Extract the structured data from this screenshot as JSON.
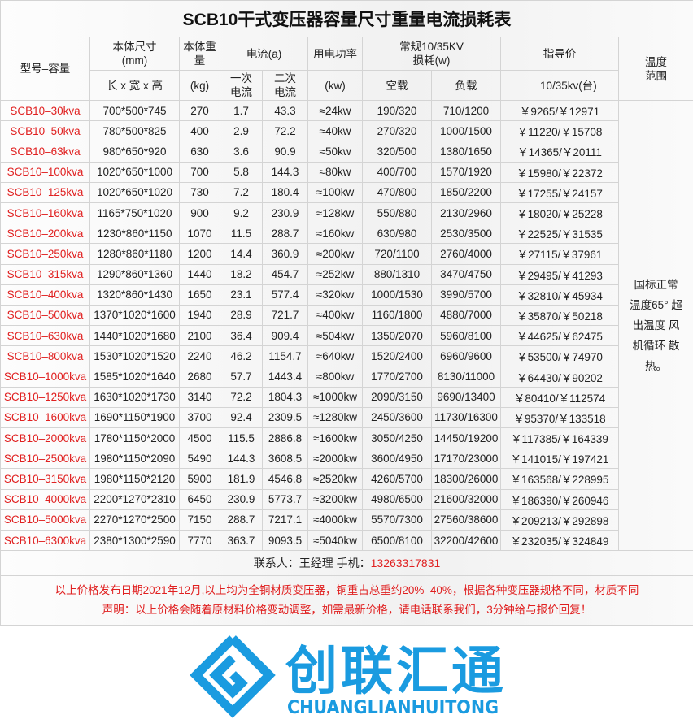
{
  "title": "SCB10干式变压器容量尺寸重量电流损耗表",
  "headers": {
    "model": "型号–容量",
    "dims": "本体尺寸",
    "dims_unit": "(mm)",
    "dims_sub": "长 x 宽 x 高",
    "weight": "本体重量",
    "weight_unit": "(kg)",
    "current": "电流(a)",
    "current1": "一次电流",
    "current2": "二次电流",
    "power": "用电功率",
    "power_unit": "(kw)",
    "loss": "常规10/35KV损耗(w)",
    "noload": "空载",
    "load": "负载",
    "price": "指导价",
    "price_sub": "10/35kv(台)",
    "temp": "温度范围"
  },
  "temp_note": "国标正常 温度65° 超出温度 风机循环 散热。",
  "rows": [
    [
      "SCB10–30kva",
      "700*500*745",
      "270",
      "1.7",
      "43.3",
      "≈24kw",
      "190/320",
      "710/1200",
      "￥9265/￥12971"
    ],
    [
      "SCB10–50kva",
      "780*500*825",
      "400",
      "2.9",
      "72.2",
      "≈40kw",
      "270/320",
      "1000/1500",
      "￥11220/￥15708"
    ],
    [
      "SCB10–63kva",
      "980*650*920",
      "630",
      "3.6",
      "90.9",
      "≈50kw",
      "320/500",
      "1380/1650",
      "￥14365/￥20111"
    ],
    [
      "SCB10–100kva",
      "1020*650*1000",
      "700",
      "5.8",
      "144.3",
      "≈80kw",
      "400/700",
      "1570/1920",
      "￥15980/￥22372"
    ],
    [
      "SCB10–125kva",
      "1020*650*1020",
      "730",
      "7.2",
      "180.4",
      "≈100kw",
      "470/800",
      "1850/2200",
      "￥17255/￥24157"
    ],
    [
      "SCB10–160kva",
      "1165*750*1020",
      "900",
      "9.2",
      "230.9",
      "≈128kw",
      "550/880",
      "2130/2960",
      "￥18020/￥25228"
    ],
    [
      "SCB10–200kva",
      "1230*860*1150",
      "1070",
      "11.5",
      "288.7",
      "≈160kw",
      "630/980",
      "2530/3500",
      "￥22525/￥31535"
    ],
    [
      "SCB10–250kva",
      "1280*860*1180",
      "1200",
      "14.4",
      "360.9",
      "≈200kw",
      "720/1100",
      "2760/4000",
      "￥27115/￥37961"
    ],
    [
      "SCB10–315kva",
      "1290*860*1360",
      "1440",
      "18.2",
      "454.7",
      "≈252kw",
      "880/1310",
      "3470/4750",
      "￥29495/￥41293"
    ],
    [
      "SCB10–400kva",
      "1320*860*1430",
      "1650",
      "23.1",
      "577.4",
      "≈320kw",
      "1000/1530",
      "3990/5700",
      "￥32810/￥45934"
    ],
    [
      "SCB10–500kva",
      "1370*1020*1600",
      "1940",
      "28.9",
      "721.7",
      "≈400kw",
      "1160/1800",
      "4880/7000",
      "￥35870/￥50218"
    ],
    [
      "SCB10–630kva",
      "1440*1020*1680",
      "2100",
      "36.4",
      "909.4",
      "≈504kw",
      "1350/2070",
      "5960/8100",
      "￥44625/￥62475"
    ],
    [
      "SCB10–800kva",
      "1530*1020*1520",
      "2240",
      "46.2",
      "1154.7",
      "≈640kw",
      "1520/2400",
      "6960/9600",
      "￥53500/￥74970"
    ],
    [
      "SCB10–1000kva",
      "1585*1020*1640",
      "2680",
      "57.7",
      "1443.4",
      "≈800kw",
      "1770/2700",
      "8130/11000",
      "￥64430/￥90202"
    ],
    [
      "SCB10–1250kva",
      "1630*1020*1730",
      "3140",
      "72.2",
      "1804.3",
      "≈1000kw",
      "2090/3150",
      "9690/13400",
      "￥80410/￥112574"
    ],
    [
      "SCB10–1600kva",
      "1690*1150*1900",
      "3700",
      "92.4",
      "2309.5",
      "≈1280kw",
      "2450/3600",
      "11730/16300",
      "￥95370/￥133518"
    ],
    [
      "SCB10–2000kva",
      "1780*1150*2000",
      "4500",
      "115.5",
      "2886.8",
      "≈1600kw",
      "3050/4250",
      "14450/19200",
      "￥117385/￥164339"
    ],
    [
      "SCB10–2500kva",
      "1980*1150*2090",
      "5490",
      "144.3",
      "3608.5",
      "≈2000kw",
      "3600/4950",
      "17170/23000",
      "￥141015/￥197421"
    ],
    [
      "SCB10–3150kva",
      "1980*1150*2120",
      "5900",
      "181.9",
      "4546.8",
      "≈2520kw",
      "4260/5700",
      "18300/26000",
      "￥163568/￥228995"
    ],
    [
      "SCB10–4000kva",
      "2200*1270*2310",
      "6450",
      "230.9",
      "5773.7",
      "≈3200kw",
      "4980/6500",
      "21600/32000",
      "￥186390/￥260946"
    ],
    [
      "SCB10–5000kva",
      "2270*1270*2500",
      "7150",
      "288.7",
      "7217.1",
      "≈4000kw",
      "5570/7300",
      "27560/38600",
      "￥209213/￥292898"
    ],
    [
      "SCB10–6300kva",
      "2380*1300*2590",
      "7770",
      "363.7",
      "9093.5",
      "≈5040kw",
      "6500/8100",
      "32200/42600",
      "￥232035/￥324849"
    ]
  ],
  "contact": {
    "label": "联系人：王经理  手机：",
    "phone": "13263317831"
  },
  "notes": [
    "以上价格发布日期2021年12月,以上均为全铜材质变压器，铜重占总重约20%–40%，根据各种变压器规格不同，材质不同",
    "声明：以上价格会随着原材料价格变动调整，如需最新价格，请电话联系我们，3分钟给与报价回复！"
  ],
  "watermark": {
    "cn": "创联汇通",
    "en": "CHUANGLIANHUITONG",
    "color": "#1a9be0"
  },
  "colors": {
    "accent_red": "#e02020"
  }
}
